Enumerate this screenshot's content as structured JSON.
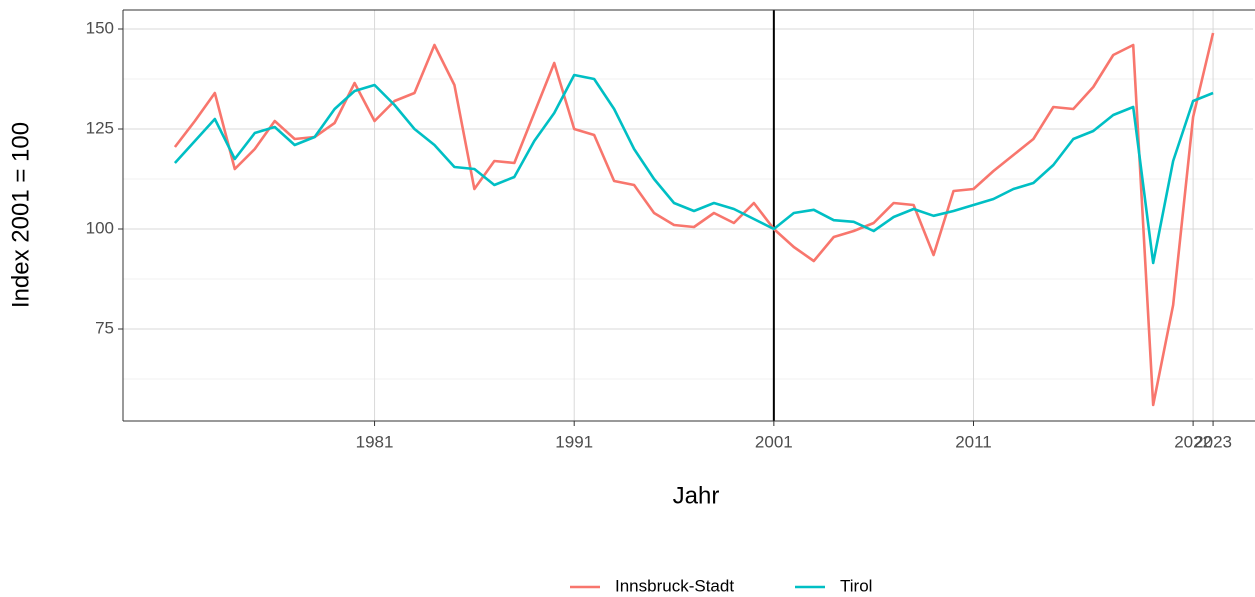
{
  "chart_data": {
    "type": "line",
    "x_label": "Jahr",
    "y_label": "Index 2001 = 100",
    "x": [
      1971,
      1972,
      1973,
      1974,
      1975,
      1976,
      1977,
      1978,
      1979,
      1980,
      1981,
      1982,
      1983,
      1984,
      1985,
      1986,
      1987,
      1988,
      1989,
      1990,
      1991,
      1992,
      1993,
      1994,
      1995,
      1996,
      1997,
      1998,
      1999,
      2000,
      2001,
      2002,
      2003,
      2004,
      2005,
      2006,
      2007,
      2008,
      2009,
      2010,
      2011,
      2012,
      2013,
      2014,
      2015,
      2016,
      2017,
      2018,
      2019,
      2020,
      2021,
      2022,
      2023
    ],
    "series": [
      {
        "name": "Innsbruck-Stadt",
        "color": "#F8766D",
        "values": [
          120.5,
          127,
          134,
          115,
          120,
          127,
          122.5,
          123,
          126.5,
          136.5,
          127,
          132,
          134,
          146,
          136,
          110,
          117,
          116.5,
          129,
          141.5,
          125,
          123.5,
          112,
          111,
          104,
          101,
          100.5,
          104,
          101.5,
          106.5,
          100,
          95.5,
          92,
          98,
          99.5,
          101.5,
          106.5,
          106,
          93.5,
          109.5,
          110,
          114.5,
          118.5,
          122.5,
          130.5,
          130,
          135.5,
          143.5,
          146,
          56,
          81,
          128,
          149
        ]
      },
      {
        "name": "Tirol",
        "color": "#00BFC4",
        "values": [
          116.5,
          122,
          127.5,
          117.5,
          124,
          125.5,
          121,
          123,
          130,
          134.5,
          136,
          131,
          125,
          121,
          115.5,
          115,
          111,
          113,
          122,
          129,
          138.5,
          137.5,
          130,
          120,
          112.5,
          106.5,
          104.5,
          106.5,
          105,
          102.5,
          100,
          104,
          104.8,
          102.2,
          101.8,
          99.5,
          103,
          105,
          103.3,
          104.5,
          106,
          107.5,
          110,
          111.5,
          116,
          122.5,
          124.5,
          128.5,
          130.5,
          91.5,
          117,
          132,
          134
        ]
      }
    ],
    "xlim": [
      1968.4,
      2025
    ],
    "ylim": [
      52,
      154.75
    ],
    "xticks": [
      1981,
      1991,
      2001,
      2011,
      2022,
      2023
    ],
    "yticks": [
      75,
      100,
      125,
      150
    ],
    "yminor": [
      62.5,
      87.5,
      112.5,
      137.5
    ],
    "vline": 2001,
    "grid": true,
    "legend": "bottom"
  }
}
